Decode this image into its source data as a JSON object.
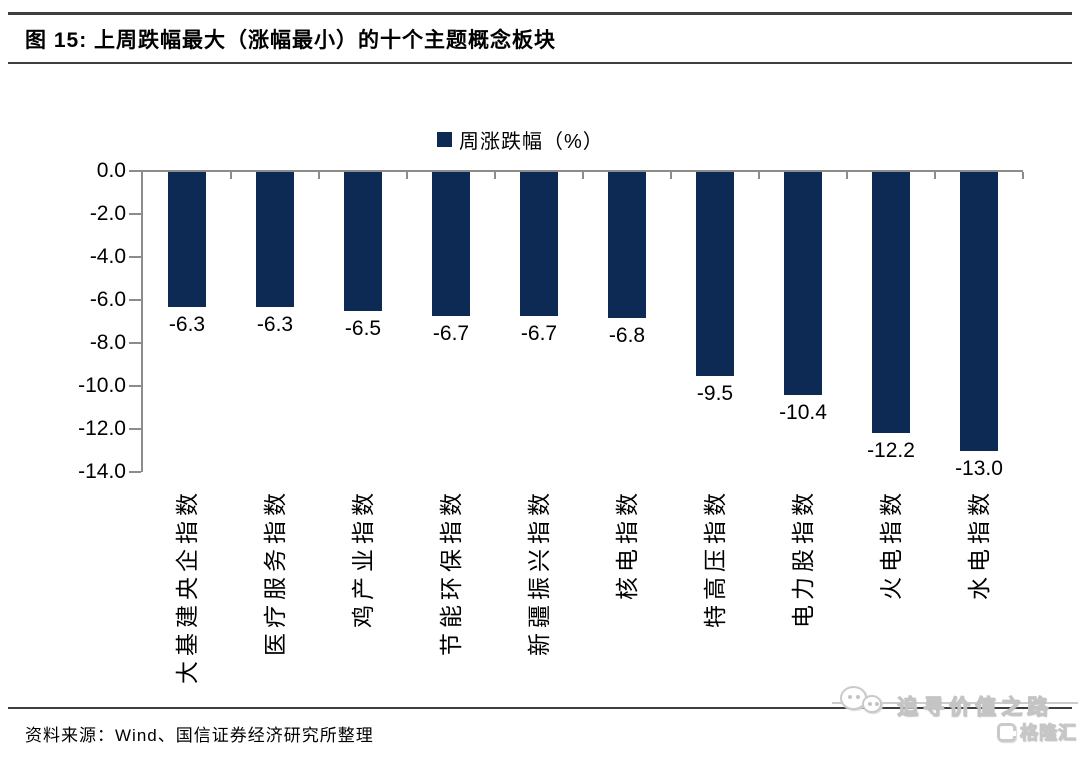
{
  "figure": {
    "title": "图 15: 上周跌幅最大（涨幅最小）的十个主题概念板块",
    "source": "资料来源：Wind、国信证券经济研究所整理"
  },
  "watermark": {
    "slogan": "追寻价值之路",
    "brand": "格隆汇",
    "wechat_icon": "wechat-bubbles-icon"
  },
  "chart_data": {
    "type": "bar",
    "title": "上周跌幅最大（涨幅最小）的十个主题概念板块",
    "legend_label": "周涨跌幅（%）",
    "legend_position": "top-center",
    "categories": [
      "大基建央企指数",
      "医疗服务指数",
      "鸡产业指数",
      "节能环保指数",
      "新疆振兴指数",
      "核电指数",
      "特高压指数",
      "电力股指数",
      "火电指数",
      "水电指数"
    ],
    "values": [
      -6.3,
      -6.3,
      -6.5,
      -6.7,
      -6.7,
      -6.8,
      -9.5,
      -10.4,
      -12.2,
      -13.0
    ],
    "value_labels": [
      "-6.3",
      "-6.3",
      "-6.5",
      "-6.7",
      "-6.7",
      "-6.8",
      "-9.5",
      "-10.4",
      "-12.2",
      "-13.0"
    ],
    "xlabel": "",
    "ylabel": "",
    "ylim": [
      -14.0,
      0.0
    ],
    "ytick_labels": [
      "0.0",
      "-2.0",
      "-4.0",
      "-6.0",
      "-8.0",
      "-10.0",
      "-12.0",
      "-14.0"
    ],
    "grid": false,
    "bar_color": "#0D2A54",
    "axis_color": "#8C8C8C",
    "text_color": "#000000"
  }
}
